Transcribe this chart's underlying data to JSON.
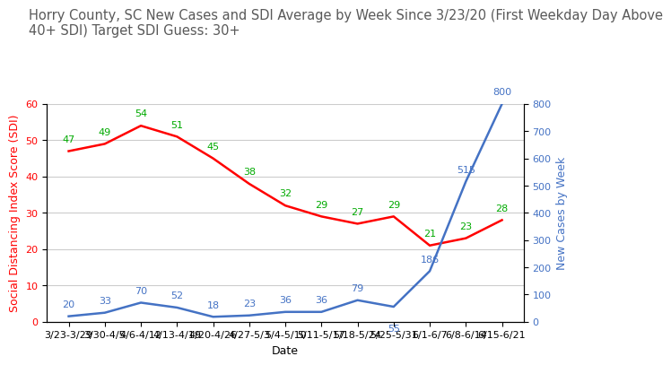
{
  "title": "Horry County, SC New Cases and SDI Average by Week Since 3/23/20 (First Weekday Day Above\n40+ SDI) Target SDI Guess: 30+",
  "xlabel": "Date",
  "ylabel_left": "Social Distancing Index Score (SDI)",
  "ylabel_right": "New Cases by Week",
  "categories": [
    "3/23-3/29",
    "3/30-4/5",
    "4/6-4/12",
    "4/13-4/19",
    "4/20-4/26",
    "4/27-5/3",
    "5/4-5/10",
    "5/11-5/17",
    "5/18-5/24",
    "5/25-5/31",
    "6/1-6/7",
    "6/8-6/14",
    "6/15-6/21"
  ],
  "sdi_values": [
    47,
    49,
    54,
    51,
    45,
    38,
    32,
    29,
    27,
    29,
    21,
    23,
    28
  ],
  "cases_values": [
    20,
    33,
    70,
    52,
    18,
    23,
    36,
    36,
    79,
    55,
    186,
    515,
    800
  ],
  "sdi_color": "#ff0000",
  "cases_color": "#4472c4",
  "sdi_label_color": "#00aa00",
  "cases_label_color": "#4472c4",
  "ylim_left": [
    0,
    60
  ],
  "ylim_right": [
    0,
    800
  ],
  "yticks_left": [
    0,
    10,
    20,
    30,
    40,
    50,
    60
  ],
  "yticks_right": [
    0,
    100,
    200,
    300,
    400,
    500,
    600,
    700,
    800
  ],
  "background_color": "#ffffff",
  "grid_color": "#cccccc",
  "title_fontsize": 10.5,
  "axis_label_fontsize": 9,
  "tick_fontsize": 8,
  "annotation_fontsize": 8,
  "title_color": "#595959"
}
